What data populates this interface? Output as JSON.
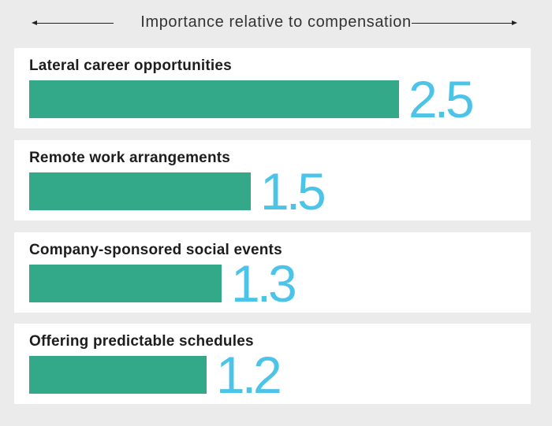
{
  "chart_data": {
    "type": "bar",
    "orientation": "horizontal",
    "title": "Importance relative to compensation",
    "categories": [
      "Lateral career opportunities",
      "Remote work arrangements",
      "Company-sponsored social events",
      "Offering predictable schedules"
    ],
    "values": [
      2.5,
      1.5,
      1.3,
      1.2
    ],
    "value_labels": [
      "2.5",
      "1.5",
      "1.3",
      "1.2"
    ],
    "xlim": [
      0,
      2.5
    ],
    "grid": false,
    "legend": "none",
    "colors": {
      "bar": "#33a98a",
      "value_text": "#4cc4e8",
      "panel": "#ffffff",
      "background": "#ebebeb"
    }
  }
}
